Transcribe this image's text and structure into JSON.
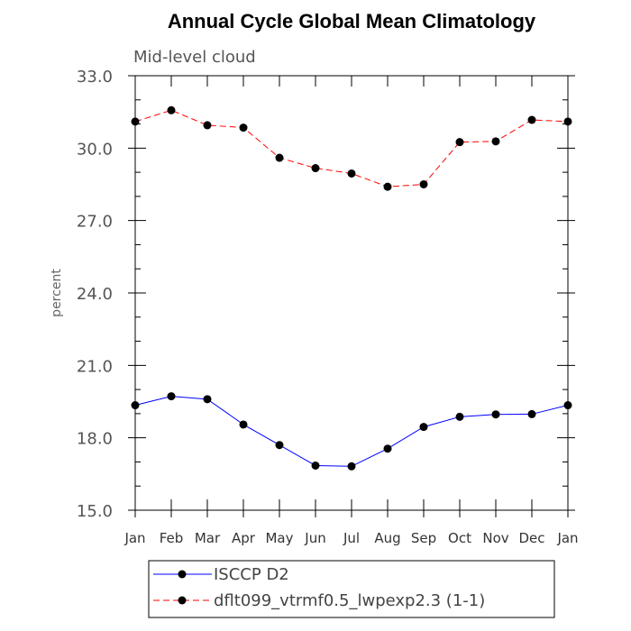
{
  "chart_data": {
    "type": "line",
    "title": "Annual Cycle Global Mean Climatology",
    "subtitle": "Mid-level cloud",
    "ylabel": "percent",
    "xlabel": "",
    "categories": [
      "Jan",
      "Feb",
      "Mar",
      "Apr",
      "May",
      "Jun",
      "Jul",
      "Aug",
      "Sep",
      "Oct",
      "Nov",
      "Dec",
      "Jan"
    ],
    "ylim": [
      15.0,
      33.0
    ],
    "yticks": [
      "15.0",
      "18.0",
      "21.0",
      "24.0",
      "27.0",
      "30.0",
      "33.0"
    ],
    "series": [
      {
        "name": "ISCCP D2",
        "color": "#0000ff",
        "dash": "solid",
        "values": [
          19.35,
          19.72,
          19.6,
          18.55,
          17.7,
          16.85,
          16.82,
          17.55,
          18.45,
          18.87,
          18.97,
          18.98,
          19.35
        ]
      },
      {
        "name": "dflt099_vtrmf0.5_lwpexp2.3 (1-1)",
        "color": "#ff0000",
        "dash": "dashed",
        "values": [
          31.1,
          31.57,
          30.95,
          30.85,
          29.6,
          29.17,
          28.95,
          28.4,
          28.5,
          30.25,
          30.28,
          31.17,
          31.1
        ]
      }
    ]
  }
}
